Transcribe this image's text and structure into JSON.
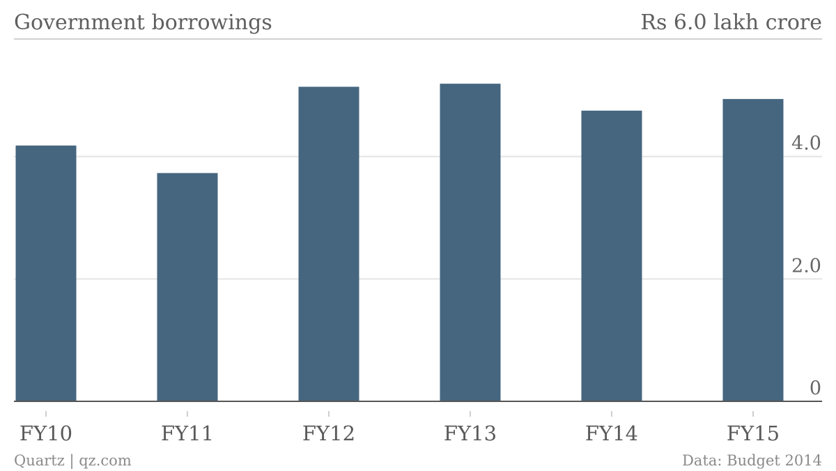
{
  "chart_data": {
    "type": "bar",
    "title": "Government borrowings",
    "unit_label": "Rs 6.0 lakh crore",
    "categories": [
      "FY10",
      "FY11",
      "FY12",
      "FY13",
      "FY14",
      "FY15"
    ],
    "values": [
      4.18,
      3.73,
      5.14,
      5.19,
      4.75,
      4.94
    ],
    "yticks": [
      "0",
      "2.0",
      "4.0"
    ],
    "ylim": [
      0,
      6
    ],
    "grid": true,
    "bar_color": "#46667f",
    "source": "Data: Budget 2014",
    "credit": "Quartz | qz.com"
  }
}
